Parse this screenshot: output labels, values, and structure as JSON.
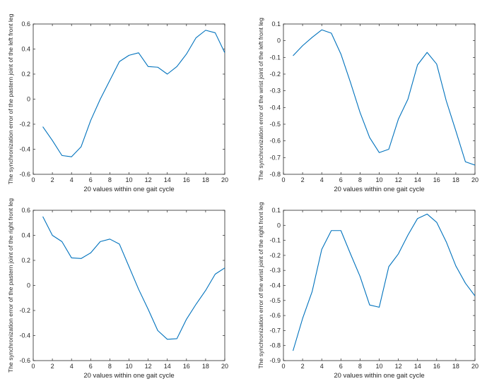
{
  "chart_data": [
    {
      "type": "line",
      "xlabel": "20 values within one gait cycle",
      "ylabel": "The synchronization error of the pastern joint of the left front leg",
      "xlim": [
        0,
        20
      ],
      "ylim": [
        -0.6,
        0.6
      ],
      "xticks": [
        0,
        2,
        4,
        6,
        8,
        10,
        12,
        14,
        16,
        18,
        20
      ],
      "yticks": [
        -0.6,
        -0.4,
        -0.2,
        0,
        0.2,
        0.4,
        0.6
      ],
      "line_color": "#0072BD",
      "grid": false,
      "series": [
        {
          "x": [
            1,
            2,
            3,
            4,
            5,
            6,
            7,
            8,
            9,
            10,
            11,
            12,
            13,
            14,
            15,
            16,
            17,
            18,
            19,
            20
          ],
          "values": [
            -0.22,
            -0.33,
            -0.45,
            -0.46,
            -0.38,
            -0.17,
            0.0,
            0.15,
            0.3,
            0.35,
            0.37,
            0.26,
            0.255,
            0.2,
            0.26,
            0.36,
            0.49,
            0.55,
            0.53,
            0.37
          ]
        }
      ]
    },
    {
      "type": "line",
      "xlabel": "20 values within one gait cycle",
      "ylabel": "The synchronization error of the wrist joint of the left front leg",
      "xlim": [
        0,
        20
      ],
      "ylim": [
        -0.8,
        0.1
      ],
      "xticks": [
        0,
        2,
        4,
        6,
        8,
        10,
        12,
        14,
        16,
        18,
        20
      ],
      "yticks": [
        -0.8,
        -0.7,
        -0.6,
        -0.5,
        -0.4,
        -0.3,
        -0.2,
        -0.1,
        0,
        0.1
      ],
      "line_color": "#0072BD",
      "grid": false,
      "series": [
        {
          "x": [
            1,
            2,
            3,
            4,
            5,
            6,
            7,
            8,
            9,
            10,
            11,
            12,
            13,
            14,
            15,
            16,
            17,
            18,
            19,
            20
          ],
          "values": [
            -0.09,
            -0.03,
            0.02,
            0.065,
            0.045,
            -0.08,
            -0.25,
            -0.43,
            -0.58,
            -0.67,
            -0.65,
            -0.47,
            -0.35,
            -0.145,
            -0.07,
            -0.14,
            -0.36,
            -0.54,
            -0.725,
            -0.745
          ]
        }
      ]
    },
    {
      "type": "line",
      "xlabel": "20 values within one gait cycle",
      "ylabel": "The synchronization error of the pastern joint of the right front leg",
      "xlim": [
        0,
        20
      ],
      "ylim": [
        -0.6,
        0.6
      ],
      "xticks": [
        0,
        2,
        4,
        6,
        8,
        10,
        12,
        14,
        16,
        18,
        20
      ],
      "yticks": [
        -0.6,
        -0.4,
        -0.2,
        0,
        0.2,
        0.4,
        0.6
      ],
      "line_color": "#0072BD",
      "grid": false,
      "series": [
        {
          "x": [
            1,
            2,
            3,
            4,
            5,
            6,
            7,
            8,
            9,
            10,
            11,
            12,
            13,
            14,
            15,
            16,
            17,
            18,
            19,
            20
          ],
          "values": [
            0.55,
            0.4,
            0.35,
            0.22,
            0.215,
            0.26,
            0.35,
            0.37,
            0.33,
            0.15,
            -0.03,
            -0.19,
            -0.36,
            -0.43,
            -0.425,
            -0.27,
            -0.15,
            -0.04,
            0.09,
            0.14
          ]
        }
      ]
    },
    {
      "type": "line",
      "xlabel": "20 values within one gait cycle",
      "ylabel": "The synchronization error of the wrist joint of the right front leg",
      "xlim": [
        0,
        20
      ],
      "ylim": [
        -0.9,
        0.1
      ],
      "xticks": [
        0,
        2,
        4,
        6,
        8,
        10,
        12,
        14,
        16,
        18,
        20
      ],
      "yticks": [
        -0.9,
        -0.8,
        -0.7,
        -0.6,
        -0.5,
        -0.4,
        -0.3,
        -0.2,
        -0.1,
        0,
        0.1
      ],
      "line_color": "#0072BD",
      "grid": false,
      "series": [
        {
          "x": [
            1,
            2,
            3,
            4,
            5,
            6,
            7,
            8,
            9,
            10,
            11,
            12,
            13,
            14,
            15,
            16,
            17,
            18,
            19,
            20
          ],
          "values": [
            -0.835,
            -0.62,
            -0.44,
            -0.16,
            -0.035,
            -0.035,
            -0.19,
            -0.34,
            -0.53,
            -0.545,
            -0.275,
            -0.19,
            -0.065,
            0.045,
            0.075,
            0.02,
            -0.11,
            -0.27,
            -0.385,
            -0.47
          ]
        }
      ]
    }
  ]
}
